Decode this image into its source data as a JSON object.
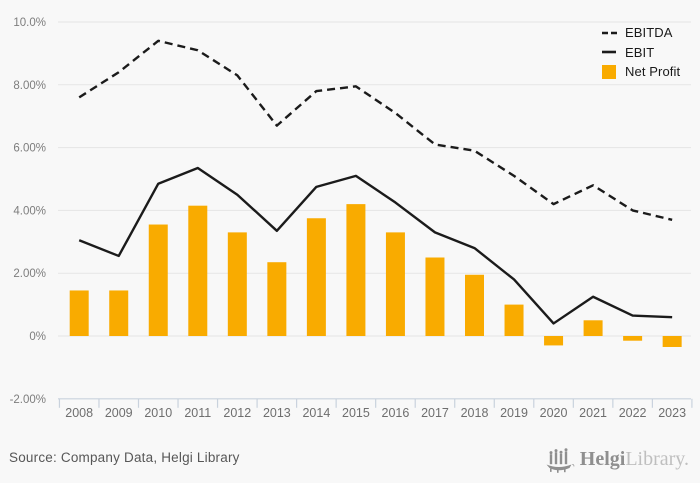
{
  "colors": {
    "background": "#f8f8f8",
    "bar": "#f9ab00",
    "line": "#1b1b1b",
    "grid": "#e5e5e5",
    "axis": "#c9d2dd",
    "tick_label": "#7d7d7d",
    "year_label": "#6e6e6e",
    "legend_text": "#1a1a1a",
    "source_text": "#575757",
    "logo_dark": "#8f8f8f",
    "logo_light": "#bfbfbf"
  },
  "chart_data": {
    "type": "combo-bar-line",
    "categories": [
      "2008",
      "2009",
      "2010",
      "2011",
      "2012",
      "2013",
      "2014",
      "2015",
      "2016",
      "2017",
      "2018",
      "2019",
      "2020",
      "2021",
      "2022",
      "2023"
    ],
    "series": [
      {
        "name": "EBITDA",
        "type": "line",
        "style": "dashed",
        "values": [
          7.6,
          8.4,
          9.4,
          9.1,
          8.3,
          6.7,
          7.8,
          7.95,
          7.1,
          6.1,
          5.9,
          5.1,
          4.2,
          4.8,
          4.0,
          3.7
        ]
      },
      {
        "name": "EBIT",
        "type": "line",
        "style": "solid",
        "values": [
          3.05,
          2.55,
          4.85,
          5.35,
          4.5,
          3.35,
          4.75,
          5.1,
          4.25,
          3.3,
          2.8,
          1.8,
          0.4,
          1.25,
          0.65,
          0.6
        ]
      },
      {
        "name": "Net Profit",
        "type": "bar",
        "values": [
          1.45,
          1.45,
          3.55,
          4.15,
          3.3,
          2.35,
          3.75,
          4.2,
          3.3,
          2.5,
          1.95,
          1.0,
          -0.3,
          0.5,
          -0.15,
          -0.35
        ]
      }
    ],
    "y_axis": {
      "tick_labels": [
        "10.0%",
        "8.00%",
        "6.00%",
        "4.00%",
        "2.00%",
        "0%",
        "-2.00%"
      ],
      "tick_values": [
        10,
        8,
        6,
        4,
        2,
        0,
        -2
      ],
      "min": -2,
      "max": 10,
      "unit": "%"
    },
    "title": "",
    "xlabel": "",
    "ylabel": "",
    "grid": true,
    "legend_position": "top-right"
  },
  "legend": {
    "items": [
      {
        "label": "EBITDA",
        "marker": "dashed-line"
      },
      {
        "label": "EBIT",
        "marker": "solid-line"
      },
      {
        "label": "Net Profit",
        "marker": "orange-square"
      }
    ]
  },
  "footer": {
    "source": "Source: Company Data, Helgi Library",
    "logo_text_bold": "Helgi",
    "logo_text_light": "Library."
  }
}
